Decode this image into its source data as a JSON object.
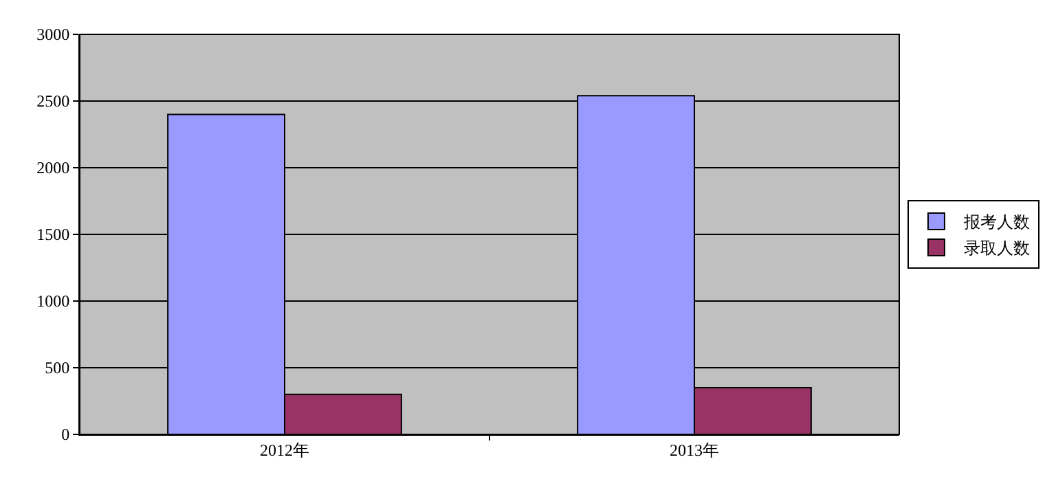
{
  "chart_data": {
    "type": "bar",
    "categories": [
      "2012年",
      "2013年"
    ],
    "series": [
      {
        "name": "报考人数",
        "color": "#9999ff",
        "values": [
          2400,
          2540
        ]
      },
      {
        "name": "录取人数",
        "color": "#993366",
        "values": [
          300,
          350
        ]
      }
    ],
    "ylim": [
      0,
      3000
    ],
    "yticks": [
      0,
      500,
      1000,
      1500,
      2000,
      2500,
      3000
    ],
    "grid": "y",
    "legend": "right"
  }
}
